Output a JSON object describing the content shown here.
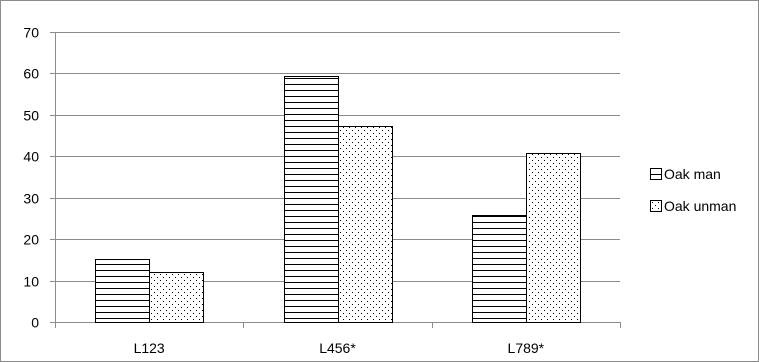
{
  "chart_data": {
    "type": "bar",
    "title": "",
    "xlabel": "",
    "ylabel": "",
    "ylim": [
      0,
      70
    ],
    "y_ticks": [
      0,
      10,
      20,
      30,
      40,
      50,
      60,
      70
    ],
    "grid": "horizontal",
    "legend_position": "right",
    "categories": [
      "L123",
      "L456*",
      "L789*"
    ],
    "series": [
      {
        "name": "Oak man",
        "pattern": "horizontal-lines",
        "values": [
          15.3,
          59.3,
          25.8
        ]
      },
      {
        "name": "Oak unman",
        "pattern": "dots",
        "values": [
          12.1,
          47.2,
          40.7
        ]
      }
    ],
    "colors": {
      "bar_stroke": "#000000",
      "grid": "#8c8c8c",
      "fill": "#ffffff"
    }
  }
}
